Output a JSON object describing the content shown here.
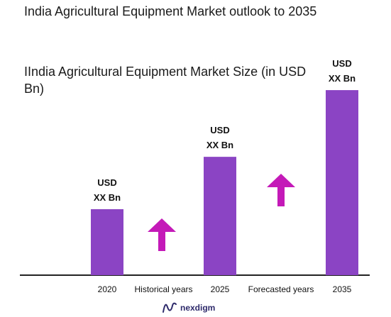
{
  "title": "India Agricultural Equipment Market outlook to 2035",
  "subtitle": "IIndia Agricultural Equipment Market Size (in USD Bn)",
  "brand": "nexdigm",
  "colors": {
    "bar": "#8b44c4",
    "arrow": "#c41ab8",
    "axis": "#222222",
    "brand": "#2e2a6b"
  },
  "chart_data": {
    "type": "bar",
    "title": "India Agricultural Equipment Market outlook to 2035",
    "categories": [
      "2020",
      "2025",
      "2035"
    ],
    "values": [
      92,
      165,
      258
    ],
    "data_labels": [
      [
        "USD",
        "XX Bn"
      ],
      [
        "USD",
        "XX Bn"
      ],
      [
        "USD",
        "XX Bn"
      ]
    ],
    "ylim": [
      0,
      265
    ],
    "grid": false,
    "period_labels": [
      "Historical years",
      "Forecasted years"
    ],
    "arrows": [
      "up",
      "up"
    ]
  }
}
